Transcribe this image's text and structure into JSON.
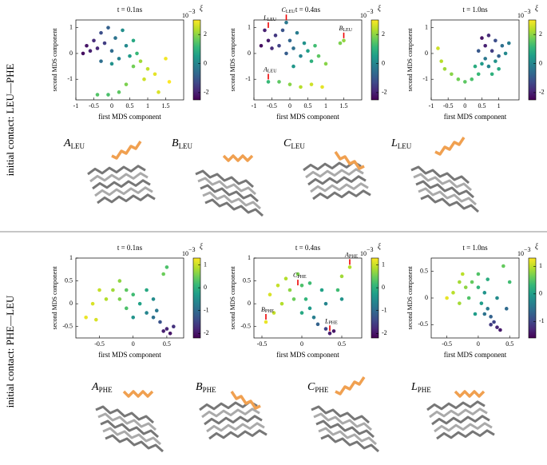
{
  "rows": [
    {
      "label": "initial contact: LEU—PHE",
      "structures": [
        {
          "letter": "A",
          "sub": "LEU"
        },
        {
          "letter": "B",
          "sub": "LEU"
        },
        {
          "letter": "C",
          "sub": "LEU"
        },
        {
          "letter": "L",
          "sub": "LEU"
        }
      ]
    },
    {
      "label": "initial contact: PHE—LEU",
      "structures": [
        {
          "letter": "A",
          "sub": "PHE"
        },
        {
          "letter": "B",
          "sub": "PHE"
        },
        {
          "letter": "C",
          "sub": "PHE"
        },
        {
          "letter": "L",
          "sub": "PHE"
        }
      ]
    }
  ],
  "chart_data": [
    {
      "type": "scatter",
      "title": "t = 0.1ns",
      "x_label": "first MDS component",
      "y_label": "second MDS component",
      "colorbar_label": "ξ",
      "colorbar_base": "10",
      "colorbar_exp": "−3",
      "xlim": [
        -1,
        2
      ],
      "xticks": [
        -1,
        -0.5,
        0,
        0.5,
        1,
        1.5
      ],
      "ylim": [
        -1.8,
        1.3
      ],
      "yticks": [
        -1,
        0,
        1
      ],
      "clim": [
        -2.5,
        3
      ],
      "cticks": [
        2,
        0,
        -2
      ],
      "x": [
        -0.7,
        -0.6,
        -0.5,
        -0.4,
        -0.3,
        -0.2,
        -0.1,
        0,
        0.1,
        0.2,
        0.3,
        0.4,
        0.5,
        0.6,
        0.7,
        0.6,
        0.8,
        1.0,
        0.9,
        1.2,
        1.5,
        1.6,
        1.3,
        0.2,
        -0.1,
        -0.4,
        0.4,
        -0.8,
        0.0,
        -0.3
      ],
      "values": [
        0.3,
        0.1,
        0.5,
        0.2,
        0.8,
        0.4,
        1.0,
        0.1,
        0.6,
        -0.2,
        0.9,
        0.3,
        -0.1,
        0.5,
        0.0,
        -0.5,
        -0.3,
        -0.6,
        -1.0,
        -0.8,
        -0.2,
        -1.1,
        -1.5,
        -1.5,
        -1.6,
        -1.6,
        -1.2,
        0.0,
        -0.4,
        -0.3
      ],
      "color_values": [
        -2.2,
        -2,
        -1.8,
        -1.9,
        -1.2,
        -1.5,
        -0.8,
        -0.6,
        -0.4,
        -0.1,
        0.2,
        0.1,
        0.5,
        0.8,
        1.2,
        1.8,
        2.2,
        2.5,
        2.6,
        2.8,
        2.9,
        3.0,
        2.7,
        1.6,
        1.4,
        1.5,
        1.9,
        -2.3,
        0.3,
        -0.5
      ]
    },
    {
      "type": "scatter",
      "title": "t = 0.4ns",
      "x_label": "first MDS component",
      "y_label": "second MDS component",
      "colorbar_label": "ξ",
      "colorbar_base": "10",
      "colorbar_exp": "−3",
      "xlim": [
        -1,
        2
      ],
      "xticks": [
        -1,
        -0.5,
        0,
        0.5,
        1,
        1.5
      ],
      "ylim": [
        -1.8,
        1.3
      ],
      "yticks": [
        -1,
        0,
        1
      ],
      "clim": [
        -2.5,
        3
      ],
      "cticks": [
        2,
        0,
        -2
      ],
      "x": [
        -0.7,
        -0.6,
        -0.5,
        -0.4,
        -0.3,
        -0.2,
        -0.1,
        0,
        0.1,
        0.2,
        0.3,
        0.4,
        0.5,
        0.6,
        0.7,
        0.8,
        1.0,
        1.4,
        1.5,
        0.9,
        0.6,
        0.3,
        0.0,
        -0.3,
        -0.6,
        -0.1,
        -0.8,
        0.1
      ],
      "values": [
        0.9,
        0.5,
        0.2,
        0.7,
        0.3,
        0.9,
        0.0,
        0.5,
        0.2,
        0.8,
        -0.1,
        0.4,
        0.1,
        -0.3,
        0.3,
        -0.1,
        -0.4,
        0.4,
        0.5,
        -1.3,
        -1.2,
        -1.3,
        -1.2,
        -1.1,
        -1.1,
        1.2,
        0.3,
        -0.5
      ],
      "color_values": [
        -2,
        -2.1,
        -1.8,
        -1.6,
        -1.4,
        -1.1,
        -0.9,
        -0.7,
        -0.5,
        -0.2,
        0,
        0.3,
        0.6,
        1.0,
        1.3,
        1.6,
        2.0,
        1.9,
        2.1,
        2.8,
        2.6,
        2.4,
        2.0,
        1.6,
        1.2,
        -0.3,
        -2.3,
        0.4
      ],
      "annotations": [
        {
          "letter": "L",
          "sub": "LEU",
          "x": -0.6,
          "y": 0.9
        },
        {
          "letter": "C",
          "sub": "LEU",
          "x": -0.1,
          "y": 1.2
        },
        {
          "letter": "B",
          "sub": "LEU",
          "x": 1.5,
          "y": 0.5
        },
        {
          "letter": "A",
          "sub": "LEU",
          "x": -0.6,
          "y": -1.1
        }
      ]
    },
    {
      "type": "scatter",
      "title": "t = 1.0ns",
      "x_label": "first MDS component",
      "y_label": "second MDS component",
      "colorbar_label": "ξ",
      "colorbar_base": "10",
      "colorbar_exp": "−3",
      "xlim": [
        -1,
        1.6
      ],
      "xticks": [
        -1,
        -0.5,
        0,
        0.5,
        1
      ],
      "ylim": [
        -1.8,
        1.3
      ],
      "yticks": [
        -1,
        0,
        1
      ],
      "clim": [
        -2.5,
        3
      ],
      "cticks": [
        2,
        0,
        -2
      ],
      "x": [
        0.5,
        0.6,
        0.7,
        0.8,
        0.9,
        1.0,
        1.1,
        0.6,
        0.7,
        0.9,
        1.2,
        0.4,
        0.5,
        1.0,
        0.8,
        0.3,
        0.4,
        0.2,
        0.0,
        -0.2,
        -0.4,
        -0.6,
        -0.7,
        -0.8,
        1.3
      ],
      "values": [
        0.6,
        0.3,
        0.7,
        0.1,
        0.5,
        -0.1,
        0.3,
        -0.2,
        -0.5,
        -0.3,
        0.0,
        0.1,
        -0.4,
        -0.6,
        -0.8,
        -0.5,
        -0.8,
        -1.0,
        -1.1,
        -1.0,
        -0.8,
        -0.6,
        -0.3,
        0.2,
        0.4
      ],
      "color_values": [
        -2.2,
        -2,
        -1.8,
        -1.5,
        -1.2,
        -0.8,
        -0.5,
        -0.3,
        0,
        0.3,
        0.1,
        -1,
        0.5,
        0.8,
        1.0,
        0.9,
        1.2,
        1.4,
        1.6,
        1.8,
        2.0,
        2.2,
        2.4,
        2.6,
        -0.2
      ]
    },
    {
      "type": "scatter",
      "title": "t = 0.1ns",
      "x_label": "first MDS component",
      "y_label": "second MDS component",
      "colorbar_label": "ξ",
      "colorbar_base": "10",
      "colorbar_exp": "−3",
      "xlim": [
        -0.85,
        0.75
      ],
      "xticks": [
        -0.5,
        0,
        0.5
      ],
      "ylim": [
        -0.75,
        1.0
      ],
      "yticks": [
        -0.5,
        0,
        0.5,
        1
      ],
      "clim": [
        -2.2,
        1.3
      ],
      "cticks": [
        1,
        0,
        -1,
        -2
      ],
      "x": [
        -0.7,
        -0.6,
        -0.5,
        -0.4,
        -0.3,
        -0.2,
        -0.1,
        0.0,
        -0.2,
        0.1,
        0.2,
        0.3,
        0.4,
        0.5,
        0.55,
        0.45,
        0.6,
        0.2,
        0.3,
        0.5,
        0.45,
        -0.1,
        0.0,
        0.35,
        -0.55
      ],
      "values": [
        -0.3,
        0.0,
        0.3,
        0.1,
        0.3,
        0.1,
        0.3,
        0.2,
        0.5,
        0.0,
        -0.2,
        -0.3,
        -0.4,
        -0.55,
        -0.65,
        -0.6,
        -0.5,
        0.3,
        0.1,
        0.8,
        0.65,
        -0.1,
        -0.3,
        -0.15,
        -0.35
      ],
      "color_values": [
        1.2,
        1.1,
        1.0,
        0.9,
        0.8,
        0.6,
        0.4,
        0.2,
        0.7,
        -0.2,
        -0.6,
        -0.9,
        -1.3,
        -1.8,
        -2.0,
        -1.9,
        -1.7,
        -0.1,
        -0.5,
        0.3,
        0.5,
        0.3,
        -0.4,
        -0.8,
        1.1
      ]
    },
    {
      "type": "scatter",
      "title": "t = 0.4ns",
      "x_label": "first MDS component",
      "y_label": "second MDS component",
      "colorbar_label": "ξ",
      "colorbar_base": "10",
      "colorbar_exp": "−3",
      "xlim": [
        -0.6,
        0.75
      ],
      "xticks": [
        -0.5,
        0,
        0.5
      ],
      "ylim": [
        -0.75,
        1.0
      ],
      "yticks": [
        -0.5,
        0,
        0.5,
        1
      ],
      "clim": [
        -2.2,
        1.3
      ],
      "cticks": [
        1,
        0,
        -1,
        -2
      ],
      "x": [
        -0.45,
        -0.4,
        -0.3,
        -0.25,
        -0.15,
        -0.1,
        0,
        0.05,
        0.1,
        0.15,
        0.2,
        0.3,
        0.35,
        0.4,
        0.25,
        0.3,
        0.5,
        0.6,
        0.45,
        -0.2,
        -0.05,
        0.1,
        -0.35,
        0.0,
        0.5
      ],
      "values": [
        -0.4,
        0.2,
        0.4,
        0.0,
        0.3,
        0.1,
        0.4,
        0.1,
        -0.1,
        -0.3,
        -0.45,
        -0.55,
        -0.65,
        -0.6,
        0.3,
        0.0,
        0.6,
        0.8,
        0.3,
        0.55,
        0.65,
        0.45,
        -0.2,
        -0.2,
        0.1
      ],
      "color_values": [
        1.2,
        1.1,
        1.0,
        0.9,
        0.7,
        0.5,
        0.3,
        0.1,
        -0.3,
        -0.7,
        -1.1,
        -1.5,
        -1.9,
        -2.0,
        -0.2,
        -0.6,
        0.8,
        0.9,
        0.2,
        0.9,
        0.6,
        0.2,
        1.0,
        -0.1,
        -0.4
      ],
      "annotations": [
        {
          "letter": "A",
          "sub": "PHE",
          "x": 0.6,
          "y": 0.8
        },
        {
          "letter": "C",
          "sub": "PHE",
          "x": -0.05,
          "y": 0.35
        },
        {
          "letter": "B",
          "sub": "PHE",
          "x": -0.45,
          "y": -0.4
        },
        {
          "letter": "L",
          "sub": "PHE",
          "x": 0.35,
          "y": -0.65
        }
      ]
    },
    {
      "type": "scatter",
      "title": "t = 1.0ns",
      "x_label": "first MDS component",
      "y_label": "second MDS component",
      "colorbar_label": "ξ",
      "colorbar_base": "10",
      "colorbar_exp": "−3",
      "xlim": [
        -0.75,
        0.65
      ],
      "xticks": [
        -0.5,
        0,
        0.5
      ],
      "ylim": [
        -0.75,
        0.75
      ],
      "yticks": [
        -0.5,
        0,
        0.5
      ],
      "clim": [
        -1.6,
        1.3
      ],
      "cticks": [
        1,
        0,
        -1
      ],
      "x": [
        -0.5,
        -0.4,
        -0.3,
        -0.2,
        -0.1,
        -0.15,
        0,
        0.05,
        0.1,
        0.15,
        0.2,
        0.25,
        0.3,
        0.2,
        0.35,
        0.1,
        0.3,
        0.5,
        0.4,
        -0.3,
        0.0,
        -0.05,
        0.15,
        -0.25,
        0.45
      ],
      "values": [
        0.0,
        0.1,
        0.3,
        0.2,
        0.3,
        0.0,
        0.2,
        -0.1,
        0.1,
        -0.2,
        -0.35,
        -0.45,
        -0.55,
        -0.5,
        -0.6,
        -0.3,
        0.0,
        0.3,
        0.6,
        -0.1,
        0.45,
        -0.3,
        0.35,
        0.45,
        -0.2
      ],
      "color_values": [
        1.2,
        1.0,
        0.9,
        0.8,
        0.6,
        0.5,
        0.3,
        0,
        -0.1,
        -0.4,
        -0.7,
        -1.0,
        -1.3,
        -1.1,
        -1.4,
        -0.5,
        -0.2,
        0.4,
        0.6,
        0.9,
        0.5,
        0.0,
        0.2,
        1.0,
        -0.6
      ]
    }
  ]
}
